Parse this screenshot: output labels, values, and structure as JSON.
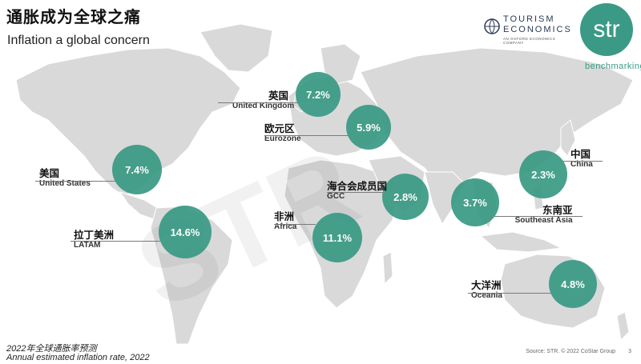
{
  "title": "通胀成为全球之痛",
  "subtitle": "Inflation a global concern",
  "logos": {
    "tourism_economics_line1": "TOURISM",
    "tourism_economics_line2": "ECONOMICS",
    "tourism_economics_tagline": "AN OXFORD ECONOMICS COMPANY",
    "str_mark": "str",
    "str_tagline": "benchmarking"
  },
  "watermark": "STR",
  "regions": [
    {
      "cn": "英国",
      "en": "United Kingdom",
      "value": "7.2%"
    },
    {
      "cn": "欧元区",
      "en": "Eurozone",
      "value": "5.9%"
    },
    {
      "cn": "美国",
      "en": "United States",
      "value": "7.4%"
    },
    {
      "cn": "中国",
      "en": "China",
      "value": "2.3%"
    },
    {
      "cn": "海合会成员国",
      "en": "GCC",
      "value": "2.8%"
    },
    {
      "cn": "东南亚",
      "en": "Southeast Asia",
      "value": "3.7%"
    },
    {
      "cn": "非洲",
      "en": "Africa",
      "value": "11.1%"
    },
    {
      "cn": "拉丁美洲",
      "en": "LATAM",
      "value": "14.6%"
    },
    {
      "cn": "大洋洲",
      "en": "Oceania",
      "value": "4.8%"
    }
  ],
  "footnote_cn": "2022年全球通胀率预测",
  "footnote_en": "Annual estimated inflation rate, 2022",
  "source": "Source: STR. © 2022 CoStar Group",
  "page_number": "3",
  "colors": {
    "bubble": "#3a9a85",
    "land": "#d9d9d9",
    "brand": "#3a9a85"
  }
}
